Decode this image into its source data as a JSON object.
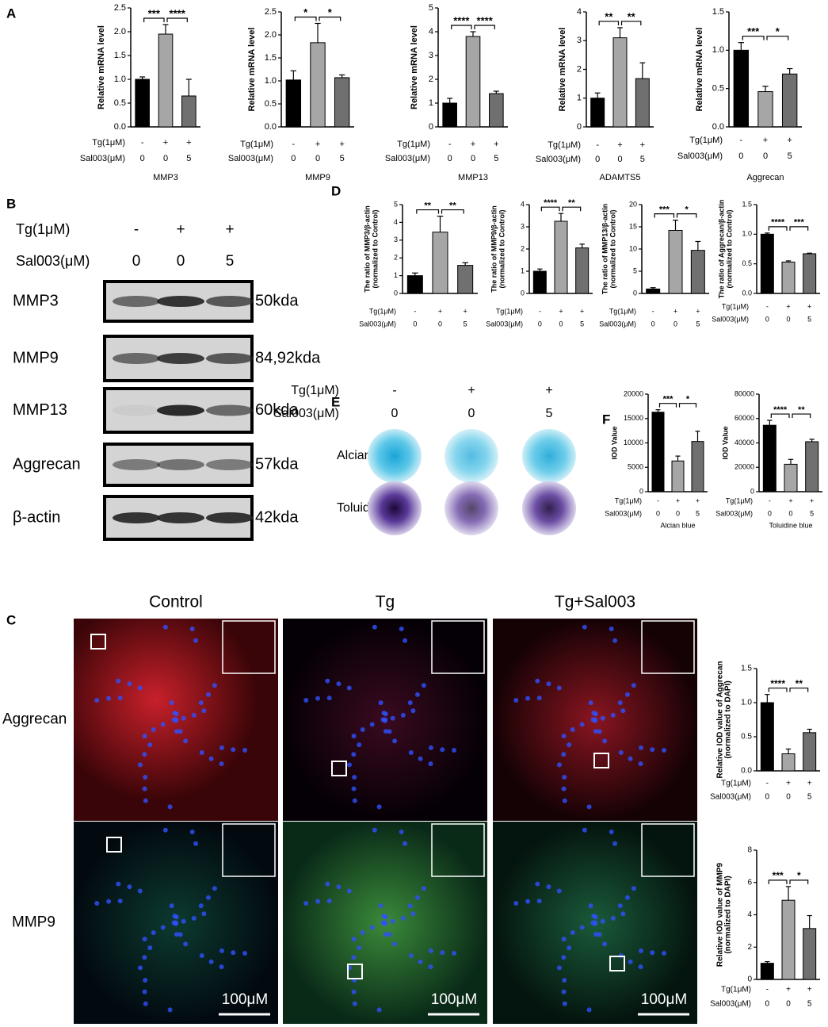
{
  "panel_labels": [
    "A",
    "B",
    "C",
    "D",
    "E",
    "F"
  ],
  "western_blot": {
    "treatment_rows": [
      {
        "label": "Tg(1μM)",
        "values": [
          "-",
          "+",
          "+"
        ]
      },
      {
        "label": "Sal003(μM)",
        "values": [
          "0",
          "0",
          "5"
        ]
      }
    ],
    "bands": [
      {
        "protein": "MMP3",
        "size": "50kda"
      },
      {
        "protein": "MMP9",
        "size": "84,92kda"
      },
      {
        "protein": "MMP13",
        "size": "60kda"
      },
      {
        "protein": "Aggrecan",
        "size": "57kda"
      },
      {
        "protein": "β-actin",
        "size": "42kda"
      }
    ]
  },
  "staining": {
    "treatment_rows": [
      {
        "label": "Tg(1μM)",
        "values": [
          "-",
          "+",
          "+"
        ]
      },
      {
        "label": "Sal003(μM)",
        "values": [
          "0",
          "0",
          "5"
        ]
      }
    ],
    "stains": [
      "Alcian blue",
      "Toluidine blue"
    ]
  },
  "immunofluorescence": {
    "groups": [
      "Control",
      "Tg",
      "Tg+Sal003"
    ],
    "markers": [
      "Aggrecan",
      "MMP9"
    ],
    "scale_bar": "100μM"
  },
  "chart_data": [
    {
      "type": "bar",
      "ylabel": [
        "Relative mRNA level"
      ],
      "xlabel": "MMP3",
      "row_labels": [
        "Tg(1μM)",
        "Sal003(μM)"
      ],
      "rows": [
        [
          "-",
          "+",
          "+"
        ],
        [
          "0",
          "0",
          "5"
        ]
      ],
      "values": [
        1.0,
        1.95,
        0.65
      ],
      "errors": [
        0.05,
        0.2,
        0.35
      ],
      "colors": [
        "#000000",
        "#a6a6a6",
        "#707070"
      ],
      "ylim": [
        0,
        2.5
      ],
      "yticks": [
        {
          "value": 0,
          "label": "0.0"
        },
        0.5,
        {
          "value": 1,
          "label": "1.0"
        },
        1.5,
        {
          "value": 2,
          "label": "2.0"
        },
        2.5
      ],
      "significance": [
        "***",
        "****"
      ]
    },
    {
      "type": "bar",
      "ylabel": [
        "Relative mRNA level"
      ],
      "xlabel": "MMP9",
      "row_labels": [
        "Tg(1μM)",
        "Sal003(μM)"
      ],
      "rows": [
        [
          "-",
          "+",
          "+"
        ],
        [
          "0",
          "0",
          "5"
        ]
      ],
      "values": [
        1.02,
        1.83,
        1.07
      ],
      "errors": [
        0.2,
        0.42,
        0.06
      ],
      "colors": [
        "#000000",
        "#a6a6a6",
        "#707070"
      ],
      "ylim": [
        0,
        2.5
      ],
      "yticks": [
        {
          "value": 0,
          "label": "0.0"
        },
        0.5,
        {
          "value": 1,
          "label": "1.0"
        },
        1.5,
        {
          "value": 2,
          "label": "2.0"
        },
        2.5
      ],
      "significance": [
        "*",
        "*"
      ]
    },
    {
      "type": "bar",
      "ylabel": [
        "Relative mRNA level"
      ],
      "xlabel": "MMP13",
      "row_labels": [
        "Tg(1μM)",
        "Sal003(μM)"
      ],
      "rows": [
        [
          "-",
          "+",
          "+"
        ],
        [
          "0",
          "0",
          "5"
        ]
      ],
      "values": [
        1.0,
        3.8,
        1.4
      ],
      "errors": [
        0.2,
        0.2,
        0.1
      ],
      "colors": [
        "#000000",
        "#a6a6a6",
        "#707070"
      ],
      "ylim": [
        0,
        5
      ],
      "yticks": [
        0,
        1,
        2,
        3,
        4,
        5
      ],
      "significance": [
        "****",
        "****"
      ]
    },
    {
      "type": "bar",
      "ylabel": [
        "Relative mRNA level"
      ],
      "xlabel": "ADAMTS5",
      "row_labels": [
        "Tg(1μM)",
        "Sal003(μM)"
      ],
      "rows": [
        [
          "-",
          "+",
          "+"
        ],
        [
          "0",
          "0",
          "5"
        ]
      ],
      "values": [
        1.0,
        3.1,
        1.68
      ],
      "errors": [
        0.18,
        0.35,
        0.55
      ],
      "colors": [
        "#000000",
        "#a6a6a6",
        "#707070"
      ],
      "ylim": [
        0,
        4
      ],
      "yticks": [
        0,
        1,
        2,
        3,
        4
      ],
      "significance": [
        "**",
        "**"
      ]
    },
    {
      "type": "bar",
      "ylabel": [
        "Relative mRNA level"
      ],
      "xlabel": "Aggrecan",
      "row_labels": [
        "Tg(1μM)",
        "Sal003(μM)"
      ],
      "rows": [
        [
          "-",
          "+",
          "+"
        ],
        [
          "0",
          "0",
          "5"
        ]
      ],
      "values": [
        1.0,
        0.46,
        0.69
      ],
      "errors": [
        0.1,
        0.07,
        0.07
      ],
      "colors": [
        "#000000",
        "#a6a6a6",
        "#707070"
      ],
      "ylim": [
        0,
        1.5
      ],
      "yticks": [
        {
          "value": 0,
          "label": "0.0"
        },
        0.5,
        {
          "value": 1,
          "label": "1.0"
        },
        1.5
      ],
      "significance": [
        "***",
        "*"
      ]
    },
    {
      "type": "bar",
      "ylabel": [
        "The ratio of MMP3/β-actin",
        "(normalized to Control)"
      ],
      "row_labels": [
        "Tg(1μM)",
        "Sal003(μM)"
      ],
      "rows": [
        [
          "-",
          "+",
          "+"
        ],
        [
          "0",
          "0",
          "5"
        ]
      ],
      "values": [
        1.0,
        3.45,
        1.58
      ],
      "errors": [
        0.15,
        0.9,
        0.15
      ],
      "colors": [
        "#000000",
        "#a6a6a6",
        "#707070"
      ],
      "ylim": [
        0,
        5
      ],
      "yticks": [
        0,
        1,
        2,
        3,
        4,
        5
      ],
      "significance": [
        "**",
        "**"
      ]
    },
    {
      "type": "bar",
      "ylabel": [
        "The ratio of MMP9/β-actin",
        "(normalized to Control)"
      ],
      "row_labels": [
        "Tg(1μM)",
        "Sal003(μM)"
      ],
      "rows": [
        [
          "-",
          "+",
          "+"
        ],
        [
          "0",
          "0",
          "5"
        ]
      ],
      "values": [
        1.0,
        3.25,
        2.05
      ],
      "errors": [
        0.1,
        0.35,
        0.17
      ],
      "colors": [
        "#000000",
        "#a6a6a6",
        "#707070"
      ],
      "ylim": [
        0,
        4
      ],
      "yticks": [
        0,
        1,
        2,
        3,
        4
      ],
      "significance": [
        "****",
        "**"
      ]
    },
    {
      "type": "bar",
      "ylabel": [
        "The ratio of MMP13/β-actin",
        "(normalized to Control)"
      ],
      "row_labels": [
        "Tg(1μM)",
        "Sal003(μM)"
      ],
      "rows": [
        [
          "-",
          "+",
          "+"
        ],
        [
          "0",
          "0",
          "5"
        ]
      ],
      "values": [
        1.0,
        14.2,
        9.7
      ],
      "errors": [
        0.3,
        2.3,
        2.0
      ],
      "colors": [
        "#000000",
        "#a6a6a6",
        "#707070"
      ],
      "ylim": [
        0,
        20
      ],
      "yticks": [
        0,
        5,
        10,
        15,
        20
      ],
      "significance": [
        "***",
        "*"
      ]
    },
    {
      "type": "bar",
      "ylabel": [
        "The ratio of Aggrecan/β-actin",
        "(normalized to Control)"
      ],
      "row_labels": [
        "Tg(1μM)",
        "Sal003(μM)"
      ],
      "rows": [
        [
          "-",
          "+",
          "+"
        ],
        [
          "0",
          "0",
          "5"
        ]
      ],
      "values": [
        1.0,
        0.53,
        0.67
      ],
      "errors": [
        0.02,
        0.02,
        0.01
      ],
      "colors": [
        "#000000",
        "#a6a6a6",
        "#707070"
      ],
      "ylim": [
        0,
        1.5
      ],
      "yticks": [
        {
          "value": 0,
          "label": "0.0"
        },
        0.5,
        {
          "value": 1,
          "label": "1.0"
        },
        1.5
      ],
      "significance": [
        "****",
        "***"
      ]
    },
    {
      "type": "bar",
      "ylabel": [
        "IOD Value"
      ],
      "xlabel": "Alcian blue",
      "row_labels": [
        "Tg(1μM)",
        "Sal003(μM)"
      ],
      "rows": [
        [
          "-",
          "+",
          "+"
        ],
        [
          "0",
          "0",
          "5"
        ]
      ],
      "values": [
        16300,
        6300,
        10300
      ],
      "errors": [
        500,
        1000,
        2100
      ],
      "colors": [
        "#000000",
        "#a6a6a6",
        "#707070"
      ],
      "ylim": [
        0,
        20000
      ],
      "yticks": [
        0,
        5000,
        10000,
        15000,
        20000
      ],
      "significance": [
        "***",
        "*"
      ]
    },
    {
      "type": "bar",
      "ylabel": [
        "IOD Value"
      ],
      "xlabel": "Toluidine blue",
      "row_labels": [
        "Tg(1μM)",
        "Sal003(μM)"
      ],
      "rows": [
        [
          "-",
          "+",
          "+"
        ],
        [
          "0",
          "0",
          "5"
        ]
      ],
      "values": [
        54500,
        22500,
        41000
      ],
      "errors": [
        4000,
        4000,
        2000
      ],
      "colors": [
        "#000000",
        "#a6a6a6",
        "#707070"
      ],
      "ylim": [
        0,
        80000
      ],
      "yticks": [
        0,
        20000,
        40000,
        60000,
        80000
      ],
      "significance": [
        "****",
        "**"
      ]
    },
    {
      "type": "bar",
      "ylabel": [
        "Relative IOD value of Aggrecan",
        "(normalized to DAPI)"
      ],
      "row_labels": [
        "Tg(1μM)",
        "Sal003(μM)"
      ],
      "rows": [
        [
          "-",
          "+",
          "+"
        ],
        [
          "0",
          "0",
          "5"
        ]
      ],
      "values": [
        1.0,
        0.25,
        0.56
      ],
      "errors": [
        0.12,
        0.07,
        0.05
      ],
      "colors": [
        "#000000",
        "#a6a6a6",
        "#707070"
      ],
      "ylim": [
        0,
        1.5
      ],
      "yticks": [
        {
          "value": 0,
          "label": "0.0"
        },
        0.5,
        {
          "value": 1,
          "label": "1.0"
        },
        1.5
      ],
      "significance": [
        "****",
        "**"
      ]
    },
    {
      "type": "bar",
      "ylabel": [
        "Relative IOD value of MMP9",
        "(normalized to DAPI)"
      ],
      "row_labels": [
        "Tg(1μM)",
        "Sal003(μM)"
      ],
      "rows": [
        [
          "-",
          "+",
          "+"
        ],
        [
          "0",
          "0",
          "5"
        ]
      ],
      "values": [
        1.0,
        4.9,
        3.15
      ],
      "errors": [
        0.1,
        0.85,
        0.8
      ],
      "colors": [
        "#000000",
        "#a6a6a6",
        "#707070"
      ],
      "ylim": [
        0,
        8
      ],
      "yticks": [
        0,
        2,
        4,
        6,
        8
      ],
      "significance": [
        "***",
        "*"
      ]
    }
  ]
}
